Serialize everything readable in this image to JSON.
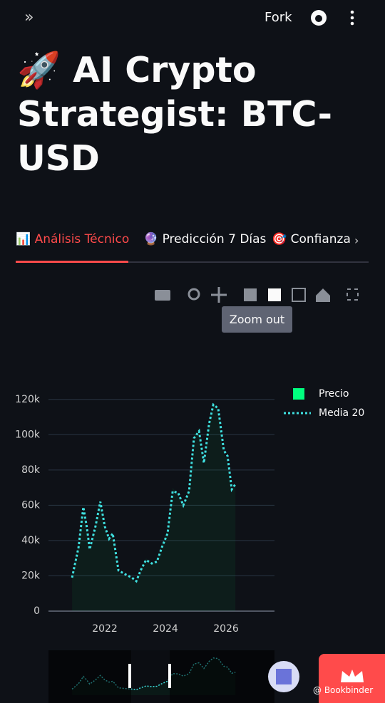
{
  "header": {
    "fork": "Fork"
  },
  "title": "🚀 AI Crypto Strategist: BTC-USD",
  "tabs": [
    "📊 Análisis Técnico",
    "🔮 Predicción 7 Días",
    "🎯 Confianza"
  ],
  "tooltip": "Zoom out",
  "badge": "@ Bookbinder",
  "chart_data": {
    "type": "line",
    "x": [
      2020.92,
      2021.13,
      2021.29,
      2021.41,
      2021.5,
      2021.69,
      2021.85,
      2022.0,
      2022.14,
      2022.26,
      2022.45,
      2022.66,
      2022.89,
      2023.04,
      2023.18,
      2023.36,
      2023.55,
      2023.72,
      2023.88,
      2024.07,
      2024.24,
      2024.42,
      2024.59,
      2024.78,
      2024.94,
      2025.11,
      2025.27,
      2025.44,
      2025.58,
      2025.74,
      2025.93,
      2026.05,
      2026.19,
      2026.31
    ],
    "series": [
      {
        "name": "Precio",
        "color": "#00ff7f",
        "values": [
          20000,
          38000,
          60000,
          45000,
          34000,
          50000,
          63000,
          46000,
          40000,
          45000,
          22000,
          20000,
          19000,
          16500,
          24000,
          30000,
          27000,
          29000,
          38000,
          46000,
          70000,
          66000,
          59000,
          70000,
          100000,
          104000,
          82000,
          108000,
          118000,
          114000,
          89000,
          86000,
          67000,
          73000
        ]
      },
      {
        "name": "Media 20",
        "color": "#3fe0e0",
        "values": [
          19000,
          36000,
          59000,
          47000,
          35000,
          48000,
          62000,
          48000,
          41000,
          44000,
          23000,
          21000,
          19000,
          17000,
          23000,
          29000,
          27000,
          28000,
          36000,
          44000,
          68000,
          67000,
          60000,
          68000,
          98000,
          102000,
          84000,
          106000,
          117000,
          115000,
          91000,
          88000,
          69000,
          72000
        ]
      }
    ],
    "xlim": [
      2020.14,
      2027.6
    ],
    "xticks": [
      2022,
      2024,
      2026
    ],
    "ylim": [
      0,
      130000
    ],
    "yticks": [
      0,
      {
        "value": 20000,
        "label": "20k"
      },
      {
        "value": 40000,
        "label": "40k"
      },
      {
        "value": 60000,
        "label": "60k"
      },
      {
        "value": 80000,
        "label": "80k"
      },
      {
        "value": 100000,
        "label": "100k"
      },
      {
        "value": 120000,
        "label": "120k"
      }
    ],
    "grid": true
  }
}
